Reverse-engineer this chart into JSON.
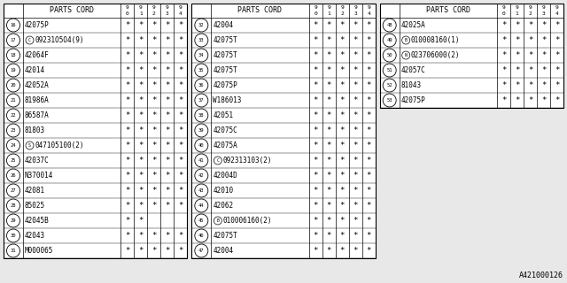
{
  "bg_color": "#e8e8e8",
  "table_bg": "#ffffff",
  "font_size": 5.5,
  "watermark": "A421000126",
  "tables": [
    {
      "rows": [
        {
          "num": "16",
          "prefix": "",
          "part": "42075P",
          "marks": [
            1,
            1,
            1,
            1,
            1
          ]
        },
        {
          "num": "17",
          "prefix": "C",
          "part": "09231O5O4(9)",
          "marks": [
            1,
            1,
            1,
            1,
            1
          ]
        },
        {
          "num": "18",
          "prefix": "",
          "part": "42064F",
          "marks": [
            1,
            1,
            1,
            1,
            1
          ]
        },
        {
          "num": "19",
          "prefix": "",
          "part": "42014",
          "marks": [
            1,
            1,
            1,
            1,
            1
          ]
        },
        {
          "num": "20",
          "prefix": "",
          "part": "42052A",
          "marks": [
            1,
            1,
            1,
            1,
            1
          ]
        },
        {
          "num": "21",
          "prefix": "",
          "part": "81986A",
          "marks": [
            1,
            1,
            1,
            1,
            1
          ]
        },
        {
          "num": "22",
          "prefix": "",
          "part": "86587A",
          "marks": [
            1,
            1,
            1,
            1,
            1
          ]
        },
        {
          "num": "23",
          "prefix": "",
          "part": "81803",
          "marks": [
            1,
            1,
            1,
            1,
            1
          ]
        },
        {
          "num": "24",
          "prefix": "S",
          "part": "047105100(2)",
          "marks": [
            1,
            1,
            1,
            1,
            1
          ]
        },
        {
          "num": "25",
          "prefix": "",
          "part": "42037C",
          "marks": [
            1,
            1,
            1,
            1,
            1
          ]
        },
        {
          "num": "26",
          "prefix": "",
          "part": "N370014",
          "marks": [
            1,
            1,
            1,
            1,
            1
          ]
        },
        {
          "num": "27",
          "prefix": "",
          "part": "42081",
          "marks": [
            1,
            1,
            1,
            1,
            1
          ]
        },
        {
          "num": "28",
          "prefix": "",
          "part": "85025",
          "marks": [
            1,
            1,
            1,
            1,
            1
          ]
        },
        {
          "num": "29",
          "prefix": "",
          "part": "42045B",
          "marks": [
            1,
            1,
            0,
            0,
            0
          ]
        },
        {
          "num": "30",
          "prefix": "",
          "part": "42043",
          "marks": [
            1,
            1,
            1,
            1,
            1
          ]
        },
        {
          "num": "31",
          "prefix": "",
          "part": "M000065",
          "marks": [
            1,
            1,
            1,
            1,
            1
          ]
        }
      ]
    },
    {
      "rows": [
        {
          "num": "32",
          "prefix": "",
          "part": "42004",
          "marks": [
            1,
            1,
            1,
            1,
            1
          ]
        },
        {
          "num": "33",
          "prefix": "",
          "part": "42075T",
          "marks": [
            1,
            1,
            1,
            1,
            1
          ]
        },
        {
          "num": "34",
          "prefix": "",
          "part": "42075T",
          "marks": [
            1,
            1,
            1,
            1,
            1
          ]
        },
        {
          "num": "35",
          "prefix": "",
          "part": "42075T",
          "marks": [
            1,
            1,
            1,
            1,
            1
          ]
        },
        {
          "num": "36",
          "prefix": "",
          "part": "42075P",
          "marks": [
            1,
            1,
            1,
            1,
            1
          ]
        },
        {
          "num": "37",
          "prefix": "",
          "part": "W186013",
          "marks": [
            1,
            1,
            1,
            1,
            1
          ]
        },
        {
          "num": "38",
          "prefix": "",
          "part": "42051",
          "marks": [
            1,
            1,
            1,
            1,
            1
          ]
        },
        {
          "num": "39",
          "prefix": "",
          "part": "42075C",
          "marks": [
            1,
            1,
            1,
            1,
            1
          ]
        },
        {
          "num": "40",
          "prefix": "",
          "part": "42075A",
          "marks": [
            1,
            1,
            1,
            1,
            1
          ]
        },
        {
          "num": "41",
          "prefix": "C",
          "part": "092313103(2)",
          "marks": [
            1,
            1,
            1,
            1,
            1
          ]
        },
        {
          "num": "42",
          "prefix": "",
          "part": "42004D",
          "marks": [
            1,
            1,
            1,
            1,
            1
          ]
        },
        {
          "num": "43",
          "prefix": "",
          "part": "42010",
          "marks": [
            1,
            1,
            1,
            1,
            1
          ]
        },
        {
          "num": "44",
          "prefix": "",
          "part": "42062",
          "marks": [
            1,
            1,
            1,
            1,
            1
          ]
        },
        {
          "num": "45",
          "prefix": "B",
          "part": "010006160(2)",
          "marks": [
            1,
            1,
            1,
            1,
            1
          ]
        },
        {
          "num": "46",
          "prefix": "",
          "part": "42075T",
          "marks": [
            1,
            1,
            1,
            1,
            1
          ]
        },
        {
          "num": "47",
          "prefix": "",
          "part": "42004",
          "marks": [
            1,
            1,
            1,
            1,
            1
          ]
        }
      ]
    },
    {
      "rows": [
        {
          "num": "48",
          "prefix": "",
          "part": "42025A",
          "marks": [
            1,
            1,
            1,
            1,
            1
          ]
        },
        {
          "num": "49",
          "prefix": "B",
          "part": "010008160(1)",
          "marks": [
            1,
            1,
            1,
            1,
            1
          ]
        },
        {
          "num": "50",
          "prefix": "N",
          "part": "023706000(2)",
          "marks": [
            1,
            1,
            1,
            1,
            1
          ]
        },
        {
          "num": "51",
          "prefix": "",
          "part": "42057C",
          "marks": [
            1,
            1,
            1,
            1,
            1
          ]
        },
        {
          "num": "52",
          "prefix": "",
          "part": "81043",
          "marks": [
            1,
            1,
            1,
            1,
            1
          ]
        },
        {
          "num": "53",
          "prefix": "",
          "part": "42075P",
          "marks": [
            1,
            1,
            1,
            1,
            1
          ]
        }
      ]
    }
  ]
}
